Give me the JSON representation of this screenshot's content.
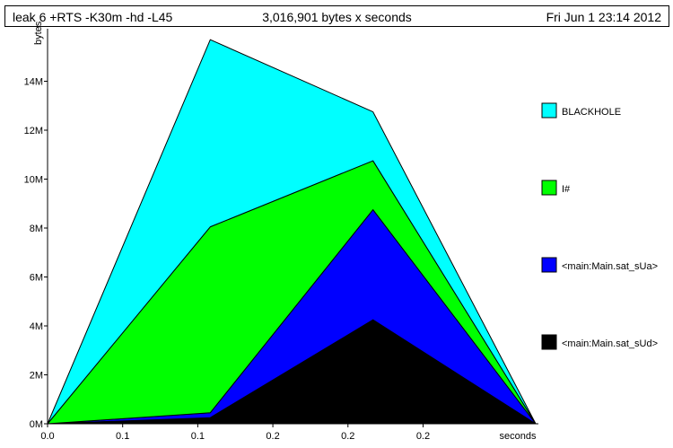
{
  "header": {
    "title": "leak 6 +RTS -K30m -hd -L45",
    "subtitle": "3,016,901 bytes x seconds",
    "date": "Fri Jun  1 23:14 2012"
  },
  "chart_data": {
    "type": "area",
    "stacked": true,
    "ylabel": "bytes",
    "xlabel": "seconds",
    "x": [
      0.0,
      0.1,
      0.2,
      0.3
    ],
    "x_tick_labels": [
      "0.0",
      "0.1",
      "0.1",
      "0.2",
      "0.2",
      "0.2"
    ],
    "y_tick_labels": [
      "0M",
      "2M",
      "4M",
      "6M",
      "8M",
      "10M",
      "12M",
      "14M"
    ],
    "ylim": [
      0,
      16
    ],
    "y_unit": "M",
    "series": [
      {
        "name": "<main:Main.sat_sUd>",
        "color": "#000000",
        "values": [
          0,
          0.25,
          4.25,
          0
        ]
      },
      {
        "name": "<main:Main.sat_sUa>",
        "color": "#0000ff",
        "values": [
          0,
          0.2,
          4.5,
          0
        ]
      },
      {
        "name": "I#",
        "color": "#00ff00",
        "values": [
          0,
          7.6,
          2.0,
          0
        ]
      },
      {
        "name": "BLACKHOLE",
        "color": "#00ffff",
        "values": [
          0,
          7.65,
          2.0,
          0
        ]
      }
    ],
    "legend": {
      "placement": "right",
      "entries": [
        {
          "label": "BLACKHOLE",
          "color": "#00ffff"
        },
        {
          "label": "I#",
          "color": "#00ff00"
        },
        {
          "label": "<main:Main.sat_sUa>",
          "color": "#0000ff"
        },
        {
          "label": "<main:Main.sat_sUd>",
          "color": "#000000"
        }
      ]
    }
  }
}
